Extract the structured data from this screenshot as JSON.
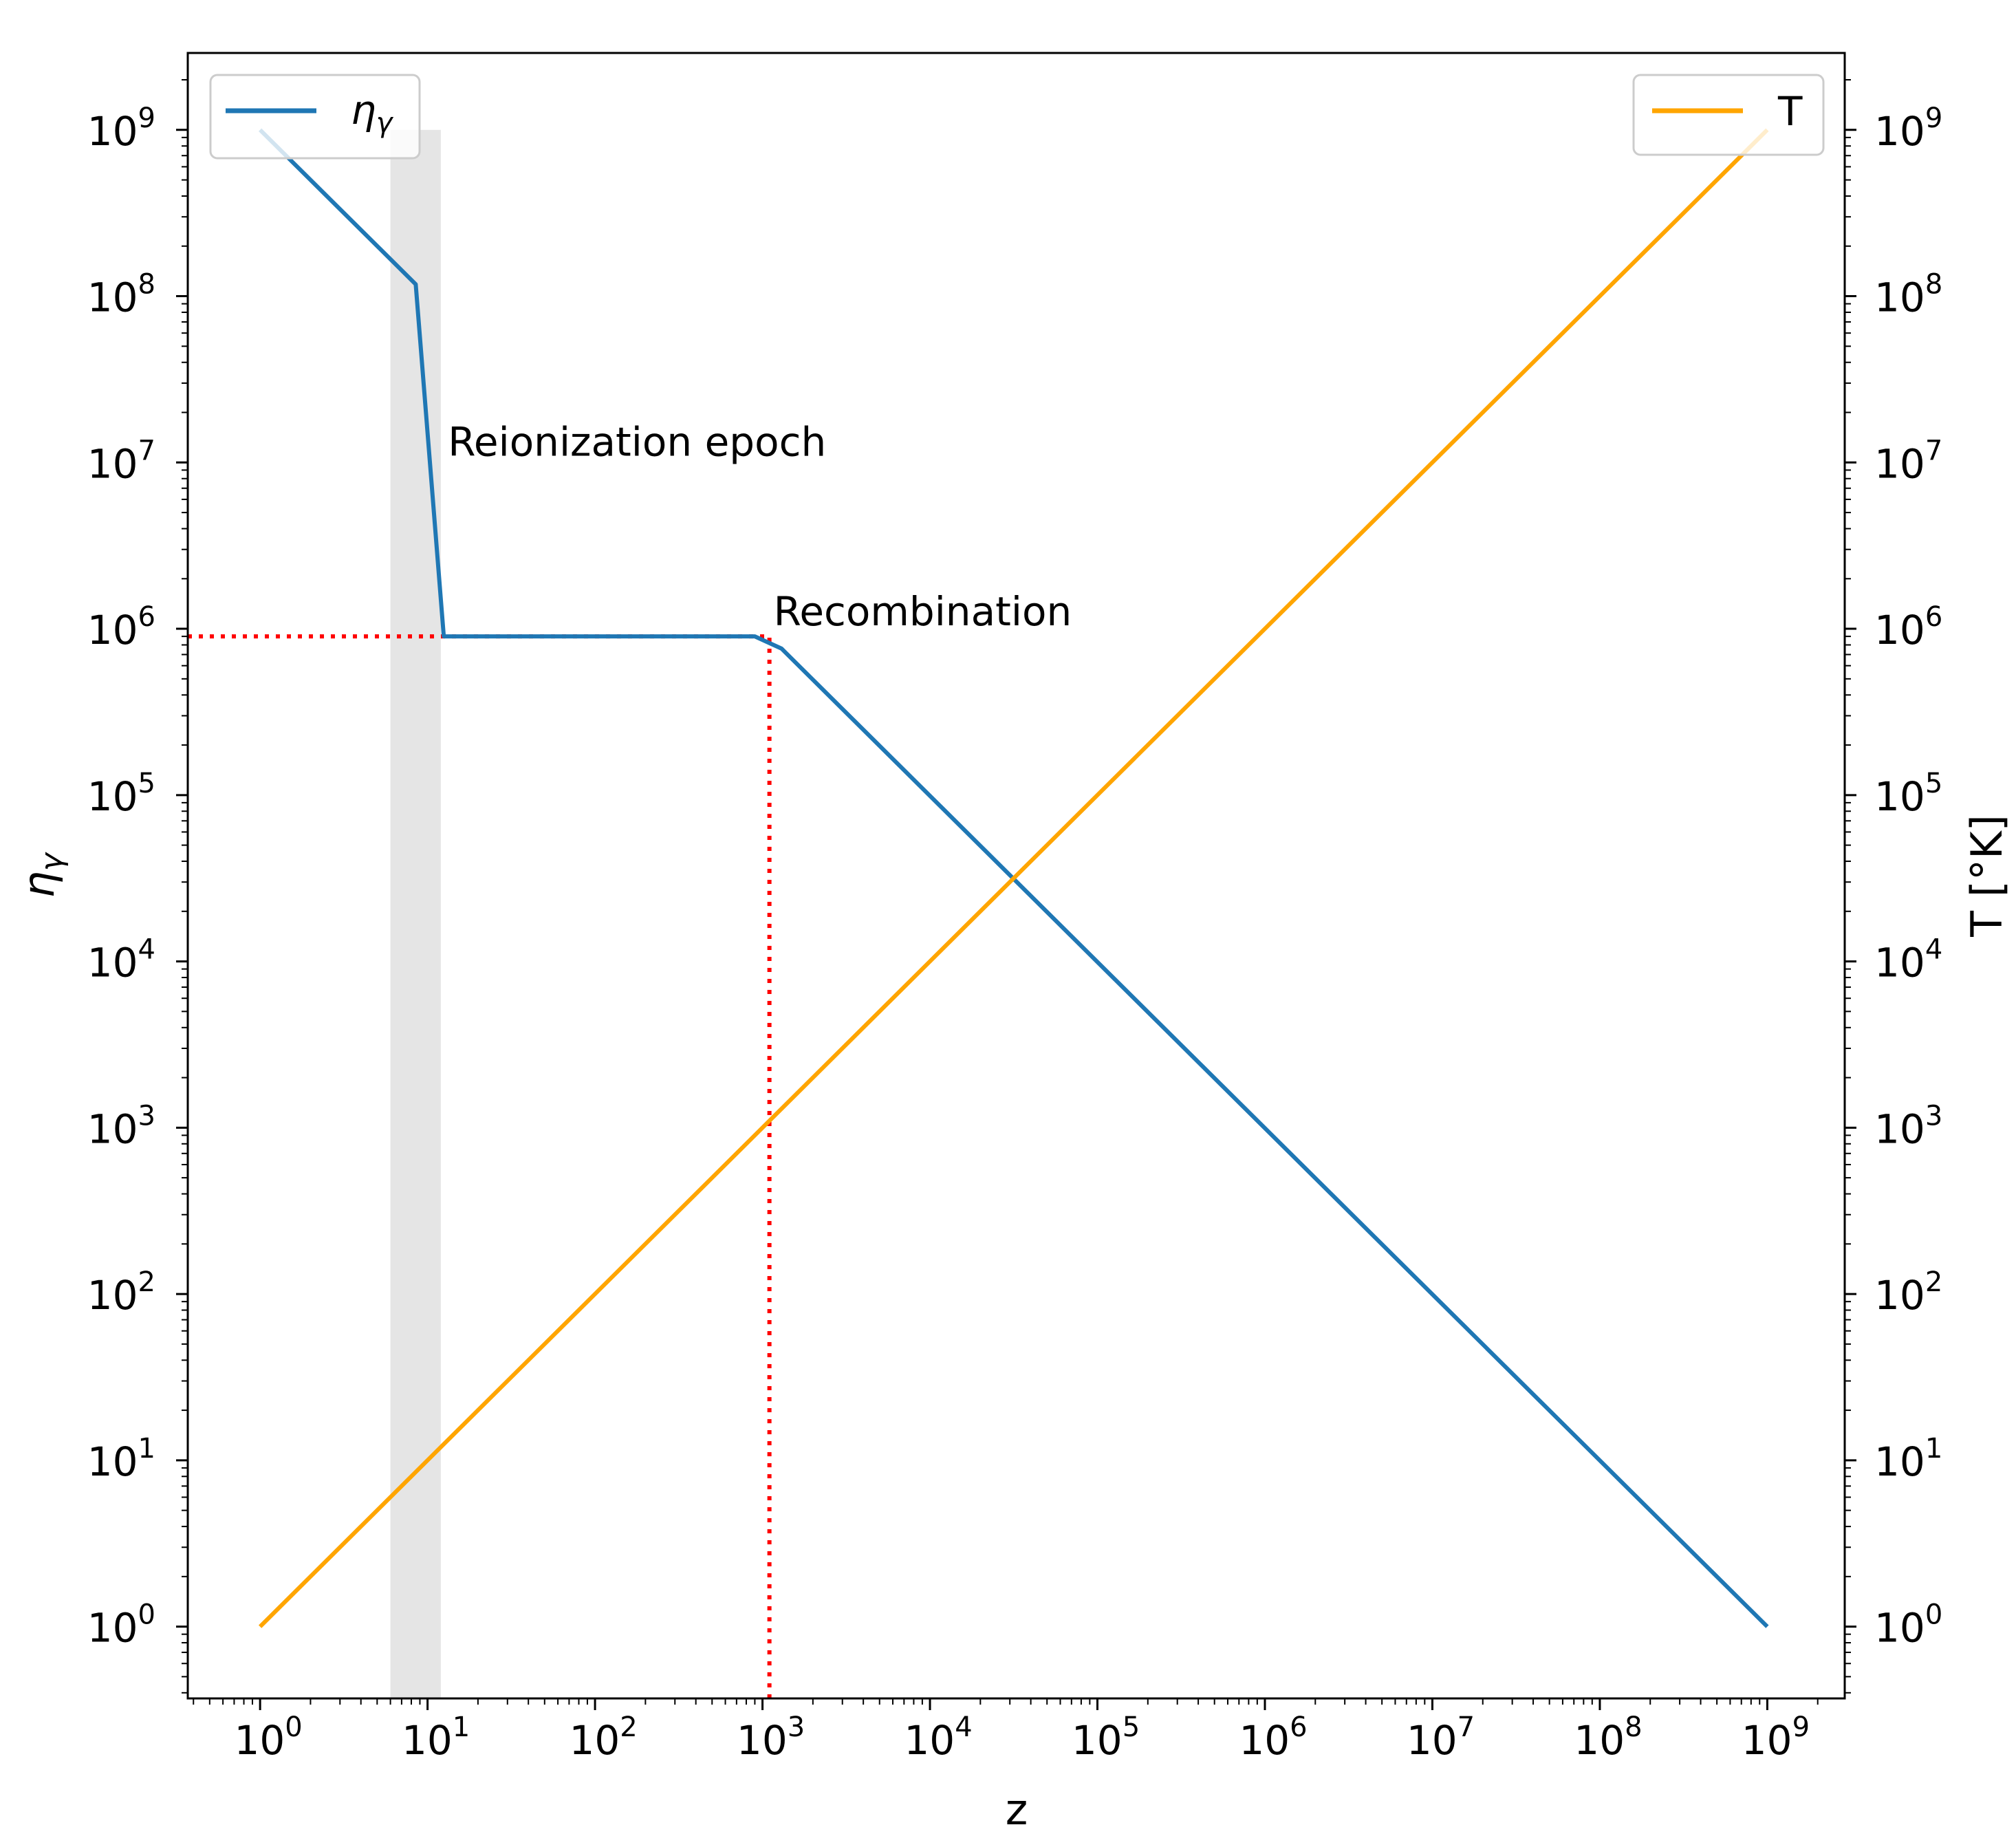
{
  "chart_data": {
    "type": "line",
    "xlabel": "z",
    "ylabel_left_base": "η",
    "ylabel_left_sub": "γ",
    "ylabel_right": "T [°K]",
    "x_scale": "log",
    "y_scale": "log",
    "xlim": [
      0.37,
      2900000000.0
    ],
    "ylim": [
      0.37,
      2900000000.0
    ],
    "x_ticks": [
      1,
      10,
      100,
      1000,
      10000,
      100000,
      1000000,
      10000000,
      100000000,
      1000000000
    ],
    "y_ticks": [
      1,
      10,
      100,
      1000,
      10000,
      100000,
      1000000,
      10000000,
      100000000,
      1000000000
    ],
    "tick_base": "10",
    "tick_exponents": [
      "0",
      "1",
      "2",
      "3",
      "4",
      "5",
      "6",
      "7",
      "8",
      "9"
    ],
    "series": [
      {
        "name_base": "η",
        "name_sub": "γ",
        "axis": "left",
        "color": "#1f77b4",
        "x": [
          1,
          8.5,
          12.5,
          900,
          1300,
          1000000000
        ],
        "y": [
          1000000000,
          118000000,
          900000,
          900000,
          760000,
          1
        ]
      },
      {
        "name": "T",
        "axis": "right",
        "color": "#ffa500",
        "x": [
          1,
          1000000000
        ],
        "y": [
          1,
          1000000000
        ]
      }
    ],
    "reionization_band": {
      "x_from": 6,
      "x_to": 12,
      "y_from": 0.37,
      "y_to": 1000000000,
      "color": "#e5e5e5"
    },
    "reference_lines": {
      "color": "#ff0000",
      "horizontal": {
        "y": 900000,
        "x_from": 0.37,
        "x_to": 1100
      },
      "vertical": {
        "x": 1100,
        "y_from": 0.37,
        "y_to": 900000
      }
    },
    "annotations": [
      {
        "text": "Reionization epoch",
        "x": 12.5,
        "y": 11000000
      },
      {
        "text": "Recombination",
        "x": 1100,
        "y": 1050000
      }
    ],
    "legends": [
      {
        "placement": "upper-left",
        "series": 0
      },
      {
        "placement": "upper-right",
        "series": 1
      }
    ],
    "grid": false
  }
}
